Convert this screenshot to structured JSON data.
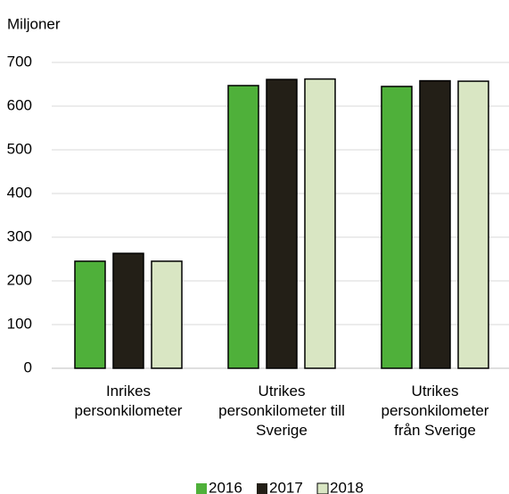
{
  "chart_data": {
    "type": "bar",
    "y_axis_label": "Miljoner",
    "categories": [
      "Inrikes personkilometer",
      "Utrikes personkilometer till Sverige",
      "Utrikes personkilometer från Sverige"
    ],
    "series": [
      {
        "name": "2016",
        "color": "#4fb03a",
        "values": [
          245,
          647,
          645
        ]
      },
      {
        "name": "2017",
        "color": "#231f17",
        "values": [
          263,
          661,
          658
        ]
      },
      {
        "name": "2018",
        "color": "#d9e6c3",
        "values": [
          245,
          662,
          657
        ]
      }
    ],
    "ylim": [
      0,
      700
    ],
    "yticks": [
      0,
      100,
      200,
      300,
      400,
      500,
      600,
      700
    ],
    "grid": true,
    "legend": "bottom"
  }
}
